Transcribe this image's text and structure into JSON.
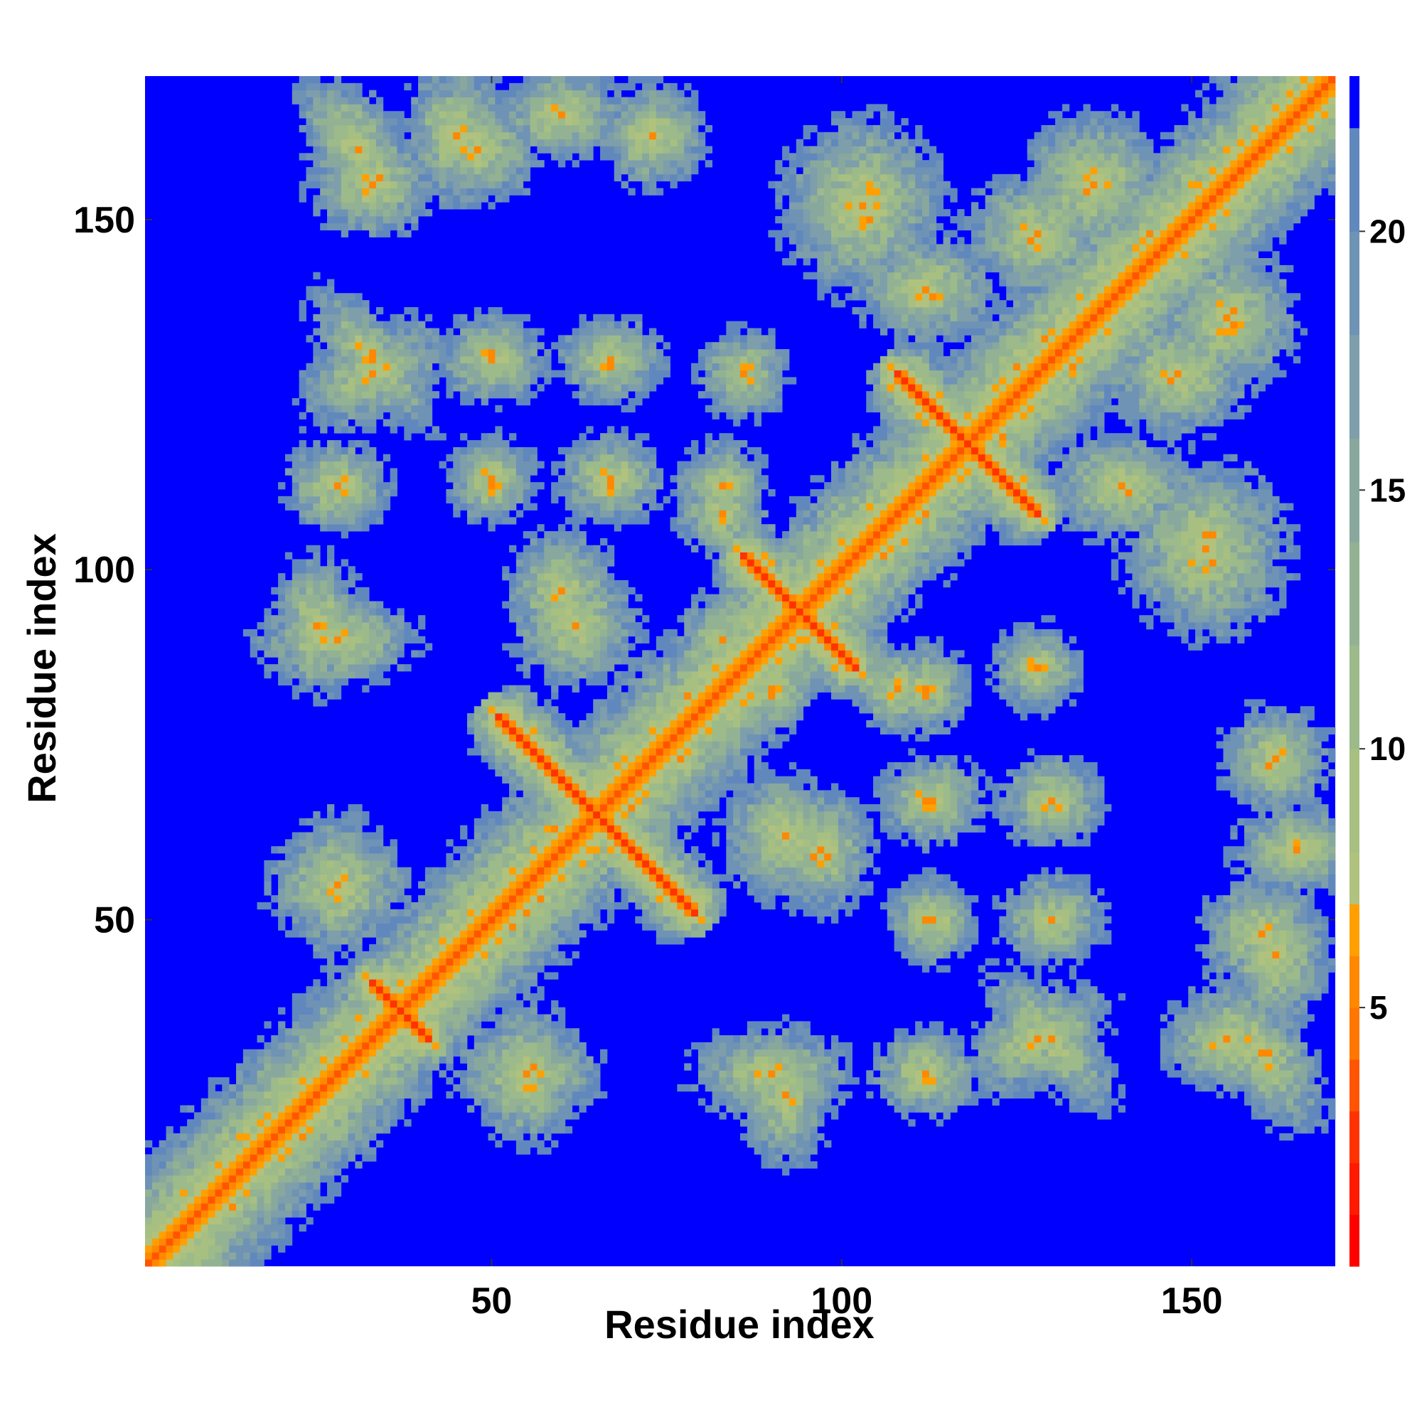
{
  "chart_data": {
    "type": "heatmap",
    "title": "",
    "xlabel": "Residue index",
    "ylabel": "Residue index",
    "n_residues": 170,
    "xlim": [
      1,
      170
    ],
    "ylim": [
      1,
      170
    ],
    "x_ticks": [
      50,
      100,
      150
    ],
    "y_ticks": [
      50,
      100,
      150
    ],
    "colorbar": {
      "ticks": [
        5,
        10,
        15,
        20
      ],
      "range": [
        0,
        23
      ],
      "levels": [
        {
          "max": 1,
          "color": "#ff0000"
        },
        {
          "max": 2,
          "color": "#ff1a00"
        },
        {
          "max": 3,
          "color": "#ff3300"
        },
        {
          "max": 4,
          "color": "#ff5500"
        },
        {
          "max": 5,
          "color": "#ff7700"
        },
        {
          "max": 6,
          "color": "#ff8800"
        },
        {
          "max": 7,
          "color": "#ffa000"
        },
        {
          "max": 8,
          "color": "#b0c27e"
        },
        {
          "max": 10,
          "color": "#a7c081"
        },
        {
          "max": 12,
          "color": "#9dba8a"
        },
        {
          "max": 14,
          "color": "#93b293"
        },
        {
          "max": 16,
          "color": "#88a89e"
        },
        {
          "max": 18,
          "color": "#7d9eaa"
        },
        {
          "max": 20,
          "color": "#6f93b4"
        },
        {
          "max": 22,
          "color": "#6188bd"
        },
        {
          "max": 999,
          "color": "#0000ff"
        }
      ]
    },
    "contact_diagonals": [
      {
        "center": 65,
        "half_span": 14,
        "orientation": "anti"
      },
      {
        "center": 94,
        "half_span": 8,
        "orientation": "anti"
      },
      {
        "center": 118,
        "half_span": 10,
        "orientation": "anti"
      },
      {
        "center": 37,
        "half_span": 4,
        "orientation": "anti"
      }
    ],
    "offdiagonal_clusters": [
      {
        "x": 31,
        "y": 160,
        "sx": 5,
        "sy": 10,
        "rot": -0.6
      },
      {
        "x": 45,
        "y": 162,
        "sx": 6,
        "sy": 8
      },
      {
        "x": 60,
        "y": 165,
        "sx": 7,
        "sy": 5
      },
      {
        "x": 103,
        "y": 152,
        "sx": 9,
        "sy": 10
      },
      {
        "x": 136,
        "y": 155,
        "sx": 8,
        "sy": 8
      },
      {
        "x": 33,
        "y": 130,
        "sx": 4,
        "sy": 10,
        "rot": -0.7
      },
      {
        "x": 50,
        "y": 130,
        "sx": 6,
        "sy": 5
      },
      {
        "x": 67,
        "y": 130,
        "sx": 6,
        "sy": 5
      },
      {
        "x": 86,
        "y": 128,
        "sx": 5,
        "sy": 5
      },
      {
        "x": 148,
        "y": 128,
        "sx": 8,
        "sy": 7
      },
      {
        "x": 28,
        "y": 112,
        "sx": 6,
        "sy": 5
      },
      {
        "x": 50,
        "y": 112,
        "sx": 4,
        "sy": 4
      },
      {
        "x": 67,
        "y": 112,
        "sx": 5,
        "sy": 4
      },
      {
        "x": 83,
        "y": 112,
        "sx": 5,
        "sy": 5
      },
      {
        "x": 140,
        "y": 112,
        "sx": 8,
        "sy": 6
      },
      {
        "x": 25,
        "y": 92,
        "sx": 5,
        "sy": 8
      },
      {
        "x": 60,
        "y": 97,
        "sx": 6,
        "sy": 7
      },
      {
        "x": 90,
        "y": 83,
        "sx": 5,
        "sy": 5
      },
      {
        "x": 108,
        "y": 83,
        "sx": 5,
        "sy": 5
      },
      {
        "x": 162,
        "y": 73,
        "sx": 6,
        "sy": 6
      },
      {
        "x": 28,
        "y": 55,
        "sx": 6,
        "sy": 8
      },
      {
        "x": 92,
        "y": 62,
        "sx": 7,
        "sy": 7
      },
      {
        "x": 113,
        "y": 67,
        "sx": 6,
        "sy": 5
      },
      {
        "x": 113,
        "y": 50,
        "sx": 5,
        "sy": 5
      },
      {
        "x": 130,
        "y": 50,
        "sx": 5,
        "sy": 5
      },
      {
        "x": 160,
        "y": 48,
        "sx": 7,
        "sy": 6
      },
      {
        "x": 55,
        "y": 28,
        "sx": 8,
        "sy": 6
      },
      {
        "x": 90,
        "y": 28,
        "sx": 9,
        "sy": 5
      },
      {
        "x": 128,
        "y": 33,
        "sx": 9,
        "sy": 5,
        "rot": -0.5
      },
      {
        "x": 155,
        "y": 33,
        "sx": 7,
        "sy": 6
      },
      {
        "x": 23,
        "y": 24,
        "sx": 4,
        "sy": 3
      }
    ]
  }
}
